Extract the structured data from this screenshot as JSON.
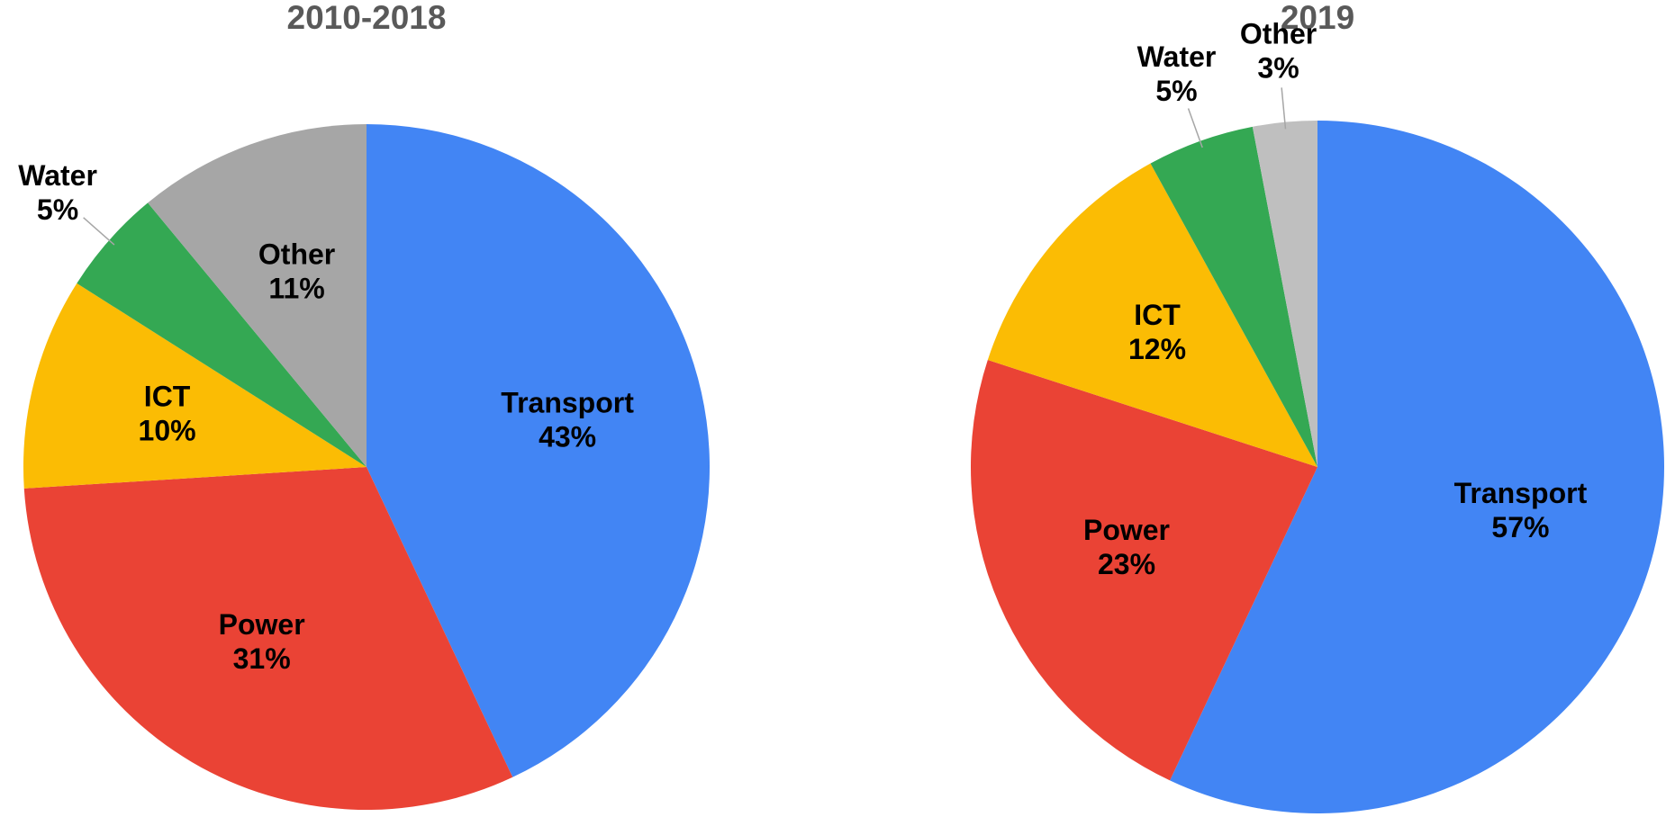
{
  "chart_data": [
    {
      "type": "pie",
      "title": "2010-2018",
      "categories": [
        "Transport",
        "Power",
        "ICT",
        "Water",
        "Other"
      ],
      "values": [
        43,
        31,
        10,
        5,
        11
      ],
      "value_labels": [
        "43%",
        "31%",
        "10%",
        "5%",
        "11%"
      ],
      "colors": [
        "#4285f4",
        "#ea4335",
        "#fbbc04",
        "#34a853",
        "#a6a6a6"
      ]
    },
    {
      "type": "pie",
      "title": "2019",
      "categories": [
        "Transport",
        "Power",
        "ICT",
        "Water",
        "Other"
      ],
      "values": [
        57,
        23,
        12,
        5,
        3
      ],
      "value_labels": [
        "57%",
        "23%",
        "12%",
        "5%",
        "3%"
      ],
      "colors": [
        "#4285f4",
        "#ea4335",
        "#fbbc04",
        "#34a853",
        "#bfbfbf"
      ]
    }
  ]
}
